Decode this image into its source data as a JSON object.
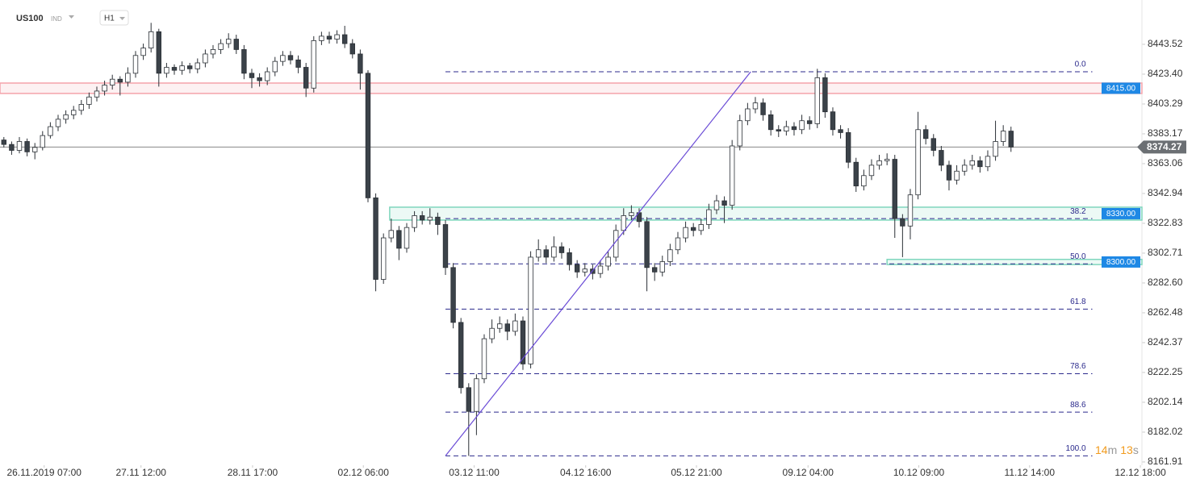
{
  "header": {
    "symbol": "US100",
    "market": "IND",
    "interval": "H1"
  },
  "timer": {
    "minutes": "14",
    "minutes_unit": "m",
    "seconds": "13",
    "seconds_unit": "s"
  },
  "chart_data": {
    "type": "candlestick",
    "xlim": [
      -0.5,
      146.9
    ],
    "xticks": [
      {
        "value": 5.2,
        "label": "26.11.2019 07:00"
      },
      {
        "value": 17.7,
        "label": "27.11 12:00"
      },
      {
        "value": 32.1,
        "label": "28.11 17:00"
      },
      {
        "value": 46.4,
        "label": "02.12 06:00"
      },
      {
        "value": 60.7,
        "label": "03.12 11:00"
      },
      {
        "value": 75.1,
        "label": "04.12 16:00"
      },
      {
        "value": 89.4,
        "label": "05.12 21:00"
      },
      {
        "value": 103.8,
        "label": "09.12 04:00"
      },
      {
        "value": 118.1,
        "label": "10.12 09:00"
      },
      {
        "value": 132.4,
        "label": "11.12 14:00"
      },
      {
        "value": 146.7,
        "label": "12.12 18:00"
      }
    ],
    "ylim": [
      8159.7,
      8473.4
    ],
    "yticks": [
      8443.52,
      {
        "value": 8423.4,
        "label": "8423.40"
      },
      8403.29,
      8383.17,
      8363.06,
      8342.94,
      8322.83,
      8302.71,
      {
        "value": 8282.6,
        "label": "8282.60"
      },
      8262.48,
      8242.37,
      8222.25,
      8202.14,
      8182.02,
      8161.91
    ],
    "up_color": "#ffffff",
    "down_color": "#3b4249",
    "outline_color": "#2b3036",
    "series": [
      {
        "name": "US100",
        "values": [
          [
            8379,
            8381,
            8374,
            8376
          ],
          [
            8376,
            8378,
            8369,
            8372
          ],
          [
            8372,
            8381,
            8370,
            8378
          ],
          [
            8378,
            8380,
            8368,
            8371
          ],
          [
            8371,
            8377,
            8366,
            8374
          ],
          [
            8374,
            8385,
            8372,
            8382
          ],
          [
            8382,
            8391,
            8380,
            8388
          ],
          [
            8388,
            8396,
            8385,
            8393
          ],
          [
            8393,
            8399,
            8390,
            8396
          ],
          [
            8396,
            8402,
            8393,
            8399
          ],
          [
            8399,
            8406,
            8396,
            8403
          ],
          [
            8403,
            8411,
            8400,
            8408
          ],
          [
            8408,
            8415,
            8405,
            8412
          ],
          [
            8412,
            8419,
            8409,
            8416
          ],
          [
            8416,
            8423,
            8413,
            8420
          ],
          [
            8420,
            8422,
            8409,
            8418
          ],
          [
            8418,
            8428,
            8415,
            8424
          ],
          [
            8424,
            8439,
            8421,
            8436
          ],
          [
            8436,
            8444,
            8433,
            8441
          ],
          [
            8441,
            8458,
            8438,
            8452
          ],
          [
            8452,
            8454,
            8415,
            8424
          ],
          [
            8424,
            8431,
            8421,
            8428
          ],
          [
            8428,
            8430,
            8423,
            8426
          ],
          [
            8426,
            8432,
            8423,
            8429
          ],
          [
            8429,
            8431,
            8424,
            8427
          ],
          [
            8427,
            8434,
            8424,
            8431
          ],
          [
            8431,
            8440,
            8428,
            8437
          ],
          [
            8437,
            8443,
            8434,
            8440
          ],
          [
            8440,
            8447,
            8437,
            8444
          ],
          [
            8444,
            8451,
            8441,
            8447
          ],
          [
            8447,
            8450,
            8437,
            8440
          ],
          [
            8440,
            8443,
            8420,
            8424
          ],
          [
            8424,
            8427,
            8414,
            8421
          ],
          [
            8421,
            8424,
            8415,
            8419
          ],
          [
            8419,
            8428,
            8416,
            8425
          ],
          [
            8425,
            8435,
            8422,
            8432
          ],
          [
            8432,
            8439,
            8429,
            8436
          ],
          [
            8436,
            8439,
            8430,
            8433
          ],
          [
            8433,
            8436,
            8424,
            8428
          ],
          [
            8428,
            8431,
            8408,
            8414
          ],
          [
            8414,
            8449,
            8411,
            8446
          ],
          [
            8446,
            8452,
            8443,
            8449
          ],
          [
            8449,
            8452,
            8444,
            8447
          ],
          [
            8447,
            8453,
            8444,
            8450
          ],
          [
            8450,
            8456,
            8441,
            8444
          ],
          [
            8444,
            8447,
            8434,
            8437
          ],
          [
            8437,
            8440,
            8413,
            8424
          ],
          [
            8424,
            8426,
            8337,
            8340
          ],
          [
            8340,
            8343,
            8277,
            8285
          ],
          [
            8285,
            8316,
            8282,
            8313
          ],
          [
            8313,
            8326,
            8310,
            8318
          ],
          [
            8318,
            8321,
            8298,
            8306
          ],
          [
            8306,
            8323,
            8303,
            8320
          ],
          [
            8320,
            8331,
            8317,
            8328
          ],
          [
            8328,
            8331,
            8322,
            8325
          ],
          [
            8325,
            8333,
            8322,
            8327
          ],
          [
            8327,
            8330,
            8315,
            8322
          ],
          [
            8322,
            8325,
            8288,
            8293
          ],
          [
            8293,
            8296,
            8252,
            8256
          ],
          [
            8256,
            8259,
            8208,
            8212
          ],
          [
            8212,
            8215,
            8166,
            8196
          ],
          [
            8196,
            8221,
            8180,
            8218
          ],
          [
            8218,
            8248,
            8215,
            8245
          ],
          [
            8245,
            8258,
            8242,
            8252
          ],
          [
            8252,
            8260,
            8249,
            8255
          ],
          [
            8255,
            8258,
            8244,
            8250
          ],
          [
            8250,
            8262,
            8247,
            8257
          ],
          [
            8257,
            8260,
            8224,
            8228
          ],
          [
            8228,
            8304,
            8225,
            8300
          ],
          [
            8300,
            8312,
            8297,
            8305
          ],
          [
            8305,
            8308,
            8296,
            8300
          ],
          [
            8300,
            8314,
            8297,
            8307
          ],
          [
            8307,
            8310,
            8299,
            8303
          ],
          [
            8303,
            8306,
            8291,
            8295
          ],
          [
            8295,
            8298,
            8286,
            8290
          ],
          [
            8290,
            8296,
            8287,
            8292
          ],
          [
            8292,
            8295,
            8285,
            8289
          ],
          [
            8289,
            8298,
            8286,
            8294
          ],
          [
            8294,
            8304,
            8291,
            8300
          ],
          [
            8300,
            8322,
            8297,
            8318
          ],
          [
            8318,
            8333,
            8315,
            8328
          ],
          [
            8328,
            8335,
            8325,
            8330
          ],
          [
            8330,
            8333,
            8320,
            8324
          ],
          [
            8324,
            8327,
            8277,
            8293
          ],
          [
            8293,
            8296,
            8284,
            8290
          ],
          [
            8290,
            8301,
            8287,
            8297
          ],
          [
            8297,
            8309,
            8294,
            8305
          ],
          [
            8305,
            8317,
            8302,
            8313
          ],
          [
            8313,
            8324,
            8310,
            8320
          ],
          [
            8320,
            8323,
            8314,
            8318
          ],
          [
            8318,
            8326,
            8315,
            8322
          ],
          [
            8322,
            8336,
            8319,
            8332
          ],
          [
            8332,
            8342,
            8329,
            8338
          ],
          [
            8338,
            8341,
            8323,
            8335
          ],
          [
            8335,
            8379,
            8332,
            8375
          ],
          [
            8375,
            8396,
            8372,
            8392
          ],
          [
            8392,
            8404,
            8389,
            8400
          ],
          [
            8400,
            8408,
            8397,
            8404
          ],
          [
            8404,
            8407,
            8392,
            8396
          ],
          [
            8396,
            8399,
            8382,
            8386
          ],
          [
            8386,
            8389,
            8381,
            8385
          ],
          [
            8385,
            8392,
            8382,
            8388
          ],
          [
            8388,
            8391,
            8382,
            8386
          ],
          [
            8386,
            8396,
            8383,
            8392
          ],
          [
            8392,
            8395,
            8386,
            8390
          ],
          [
            8390,
            8427,
            8387,
            8421
          ],
          [
            8421,
            8424,
            8394,
            8398
          ],
          [
            8398,
            8401,
            8382,
            8386
          ],
          [
            8386,
            8389,
            8380,
            8384
          ],
          [
            8384,
            8387,
            8360,
            8364
          ],
          [
            8364,
            8367,
            8344,
            8348
          ],
          [
            8348,
            8359,
            8345,
            8355
          ],
          [
            8355,
            8366,
            8352,
            8362
          ],
          [
            8362,
            8369,
            8359,
            8365
          ],
          [
            8365,
            8370,
            8362,
            8366
          ],
          [
            8366,
            8369,
            8313,
            8326
          ],
          [
            8326,
            8329,
            8300,
            8321
          ],
          [
            8321,
            8346,
            8312,
            8342
          ],
          [
            8342,
            8398,
            8339,
            8386
          ],
          [
            8386,
            8389,
            8376,
            8380
          ],
          [
            8380,
            8383,
            8368,
            8372
          ],
          [
            8372,
            8375,
            8358,
            8362
          ],
          [
            8362,
            8365,
            8345,
            8352
          ],
          [
            8352,
            8362,
            8349,
            8358
          ],
          [
            8358,
            8366,
            8355,
            8362
          ],
          [
            8362,
            8369,
            8359,
            8365
          ],
          [
            8365,
            8368,
            8357,
            8361
          ],
          [
            8361,
            8372,
            8358,
            8368
          ],
          [
            8368,
            8392,
            8365,
            8378
          ],
          [
            8378,
            8389,
            8375,
            8385
          ],
          [
            8385,
            8388,
            8371,
            8374.27
          ]
        ]
      }
    ],
    "current_price": 8374.27,
    "zones": [
      {
        "label": "8415.00",
        "top": 8417.4,
        "bottom": 8410.4,
        "start": -0.5,
        "color": "#f4a3ab"
      },
      {
        "label": "8330.00",
        "top": 8333.7,
        "bottom": 8325,
        "start": 49.8,
        "color": "#7fd6bd"
      },
      {
        "label": "8300.00",
        "top": 8298.5,
        "bottom": 8295,
        "start": 114,
        "color": "#7fd6bd"
      }
    ],
    "fib": {
      "start": 57,
      "end": 140.5,
      "color": "#2b2a8c",
      "labels": [
        "0.0",
        "38.2",
        "50.0",
        "61.8",
        "78.6",
        "88.6",
        "100.0"
      ],
      "prices": [
        8425,
        8326,
        8295.5,
        8265,
        8221.4,
        8195.5,
        8166
      ]
    },
    "trendline": {
      "x": [
        57,
        96.4
      ],
      "y": [
        8166,
        8425
      ],
      "color": "#6a4bd6"
    }
  }
}
